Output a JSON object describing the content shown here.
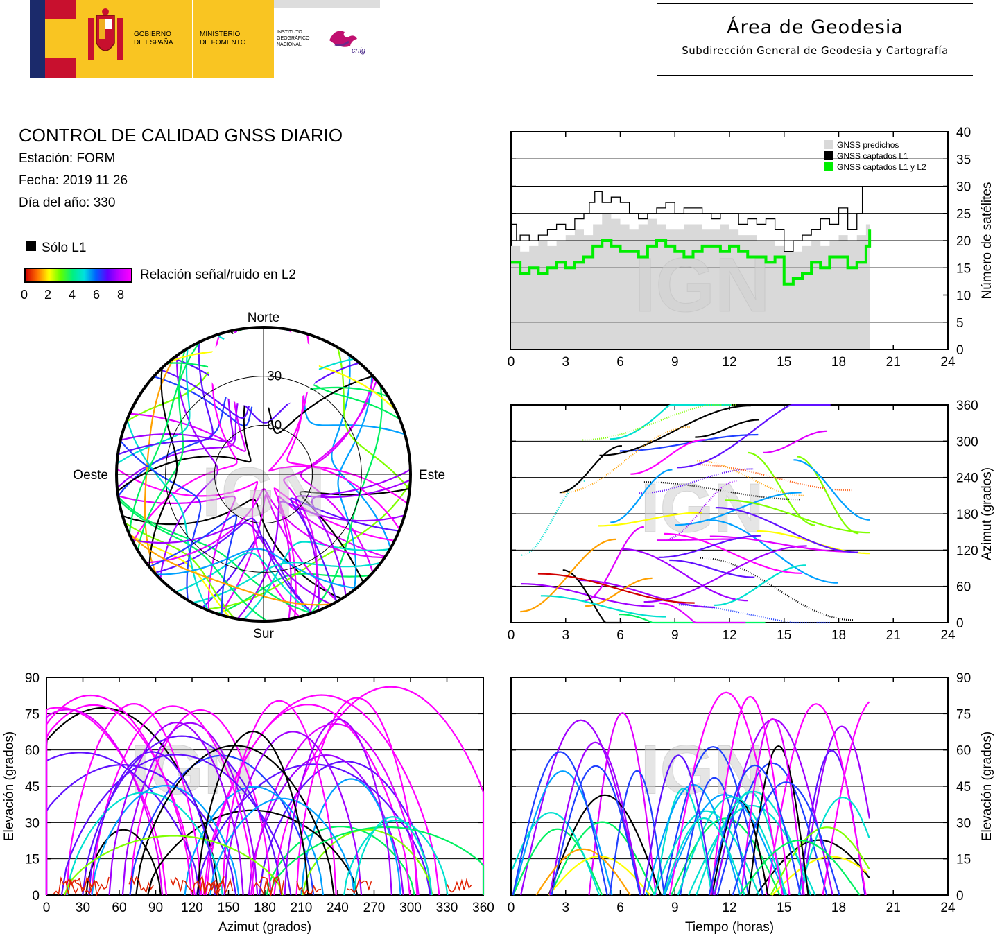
{
  "header": {
    "gobierno": [
      "GOBIERNO",
      "DE ESPAÑA"
    ],
    "ministerio": [
      "MINISTERIO",
      "DE FOMENTO"
    ],
    "instituto": [
      "INSTITUTO",
      "GEOGRÁFICO",
      "NACIONAL"
    ],
    "cnig": "cnig",
    "area_title": "Área de Geodesia",
    "area_subtitle": "Subdirección General de Geodesia y Cartografía",
    "colors": {
      "red": "#c8102e",
      "yellow": "#f9c522",
      "blue": "#1b2a6b"
    }
  },
  "report": {
    "title": "CONTROL DE CALIDAD GNSS DIARIO",
    "station": "Estación: FORM",
    "date": "Fecha: 2019 11 26",
    "doy": "Día del año: 330"
  },
  "legend": {
    "l1_only": "Sólo L1",
    "snr_label": "Relación señal/ruido en L2",
    "snr_ticks": [
      "0",
      "2",
      "4",
      "6",
      "8"
    ]
  },
  "watermark": "IGN",
  "chart_data": [
    {
      "id": "satellite-count",
      "type": "line",
      "ylabel": "Número de satélites",
      "xlim": [
        0,
        24
      ],
      "ylim": [
        0,
        40
      ],
      "x_ticks": [
        "0",
        "3",
        "6",
        "9",
        "12",
        "15",
        "18",
        "21",
        "24"
      ],
      "y_ticks": [
        "0",
        "5",
        "10",
        "15",
        "20",
        "25",
        "30",
        "35",
        "40"
      ],
      "legend": [
        "GNSS predichos",
        "GNSS captados L1",
        "GNSS captados L1 y L2"
      ],
      "legend_position": "top-right",
      "series": [
        {
          "name": "GNSS predichos",
          "color": "#d9d9d9",
          "x": [
            0,
            0.5,
            1,
            1.5,
            2,
            2.5,
            3,
            3.5,
            4,
            4.5,
            5,
            5.5,
            6,
            6.5,
            7,
            7.5,
            8,
            8.5,
            9,
            9.5,
            10,
            10.5,
            11,
            11.5,
            12,
            12.5,
            13,
            13.5,
            14,
            14.5,
            15,
            15.5,
            16,
            16.5,
            17,
            17.5,
            18,
            18.5,
            19,
            19.5,
            19.7
          ],
          "values": [
            19,
            18,
            19,
            20,
            19,
            20,
            21,
            22,
            21,
            23,
            25,
            24,
            23,
            22,
            23,
            24,
            23,
            22,
            22,
            23,
            23,
            22,
            22,
            23,
            22,
            21,
            21,
            20,
            20,
            19,
            18,
            18,
            19,
            20,
            19,
            20,
            21,
            20,
            21,
            23,
            23
          ]
        },
        {
          "name": "GNSS captados L1",
          "color": "#000000",
          "x": [
            0,
            0.3,
            0.5,
            1,
            1.5,
            2,
            2.5,
            3,
            3.5,
            4,
            4.3,
            4.6,
            5,
            5.5,
            6,
            6.5,
            7,
            7.5,
            8,
            8.5,
            9,
            9.5,
            10,
            10.5,
            11,
            11.5,
            12,
            12.5,
            13,
            13.5,
            14,
            14.5,
            15,
            15.5,
            16,
            16.5,
            17,
            17.5,
            18,
            18.5,
            19,
            19.3
          ],
          "values": [
            23,
            20,
            21,
            20,
            21,
            22,
            23,
            22,
            24,
            25,
            27,
            29,
            27,
            28,
            27,
            25,
            24,
            25,
            26,
            27,
            25,
            26,
            26,
            25,
            24,
            25,
            25,
            23,
            24,
            23,
            24,
            22,
            18,
            20,
            21,
            22,
            24,
            23,
            26,
            22,
            25,
            30
          ]
        },
        {
          "name": "GNSS captados L1 y L2",
          "color": "#00ee00",
          "x": [
            0,
            0.5,
            1,
            1.5,
            2,
            2.5,
            3,
            3.5,
            4,
            4.5,
            5,
            5.5,
            6,
            6.5,
            7,
            7.5,
            8,
            8.5,
            9,
            9.5,
            10,
            10.5,
            11,
            11.5,
            12,
            12.5,
            13,
            13.5,
            14,
            14.5,
            15,
            15.5,
            16,
            16.5,
            17,
            17.5,
            18,
            18.5,
            19,
            19.5,
            19.7
          ],
          "values": [
            16,
            14,
            15,
            14,
            15,
            16,
            15,
            16,
            17,
            19,
            20,
            19,
            18,
            18,
            17,
            19,
            20,
            19,
            18,
            17,
            18,
            19,
            19,
            18,
            19,
            18,
            17,
            17,
            16,
            17,
            12,
            13,
            14,
            16,
            15,
            17,
            17,
            15,
            16,
            19,
            22
          ]
        }
      ]
    },
    {
      "id": "azimuth-time",
      "type": "scatter",
      "ylabel": "Azimut (grados)",
      "xlim": [
        0,
        24
      ],
      "ylim": [
        0,
        360
      ],
      "x_ticks": [
        "0",
        "3",
        "6",
        "9",
        "12",
        "15",
        "18",
        "21",
        "24"
      ],
      "y_ticks": [
        "0",
        "60",
        "120",
        "180",
        "240",
        "300",
        "360"
      ]
    },
    {
      "id": "elevation-azimuth",
      "type": "scatter",
      "xlabel": "Azimut (grados)",
      "ylabel": "Elevación (grados)",
      "xlim": [
        0,
        360
      ],
      "ylim": [
        0,
        90
      ],
      "x_ticks": [
        "0",
        "30",
        "60",
        "90",
        "120",
        "150",
        "180",
        "210",
        "240",
        "270",
        "300",
        "330",
        "360"
      ],
      "y_ticks": [
        "0",
        "15",
        "30",
        "45",
        "60",
        "75",
        "90"
      ]
    },
    {
      "id": "elevation-time",
      "type": "scatter",
      "xlabel": "Tiempo (horas)",
      "ylabel": "Elevación (grados)",
      "xlim": [
        0,
        24
      ],
      "ylim": [
        0,
        90
      ],
      "x_ticks": [
        "0",
        "3",
        "6",
        "9",
        "12",
        "15",
        "18",
        "21",
        "24"
      ],
      "y_ticks": [
        "0",
        "15",
        "30",
        "45",
        "60",
        "75",
        "90"
      ]
    },
    {
      "id": "skyplot",
      "type": "scatter",
      "directions": {
        "north": "Norte",
        "south": "Sur",
        "east": "Este",
        "west": "Oeste"
      },
      "rings": [
        "30",
        "60"
      ]
    }
  ]
}
